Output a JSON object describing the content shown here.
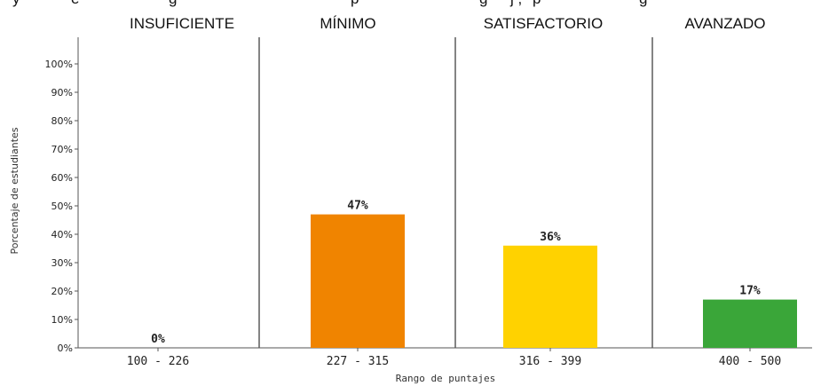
{
  "header_fragments": [
    "y",
    "e",
    "g",
    "p",
    "g",
    "j ,",
    "p",
    "g"
  ],
  "chart_data": {
    "type": "bar",
    "categories": [
      "100 - 226",
      "227 - 315",
      "316 - 399",
      "400 - 500"
    ],
    "values": [
      0,
      47,
      36,
      17
    ],
    "value_labels": [
      "0%",
      "47%",
      "36%",
      "17%"
    ],
    "levels": [
      "INSUFICIENTE",
      "MÍNIMO",
      "SATISFACTORIO",
      "AVANZADO"
    ],
    "colors": [
      "#f0a000",
      "#f08400",
      "#ffd200",
      "#3aa639"
    ],
    "title": "",
    "xlabel": "Rango de puntajes",
    "ylabel": "Porcentaje de estudiantes",
    "ylim": [
      0,
      100
    ],
    "yticks": [
      "0%",
      "10%",
      "20%",
      "30%",
      "40%",
      "50%",
      "60%",
      "70%",
      "80%",
      "90%",
      "100%"
    ],
    "grid": false,
    "legend": "none"
  }
}
